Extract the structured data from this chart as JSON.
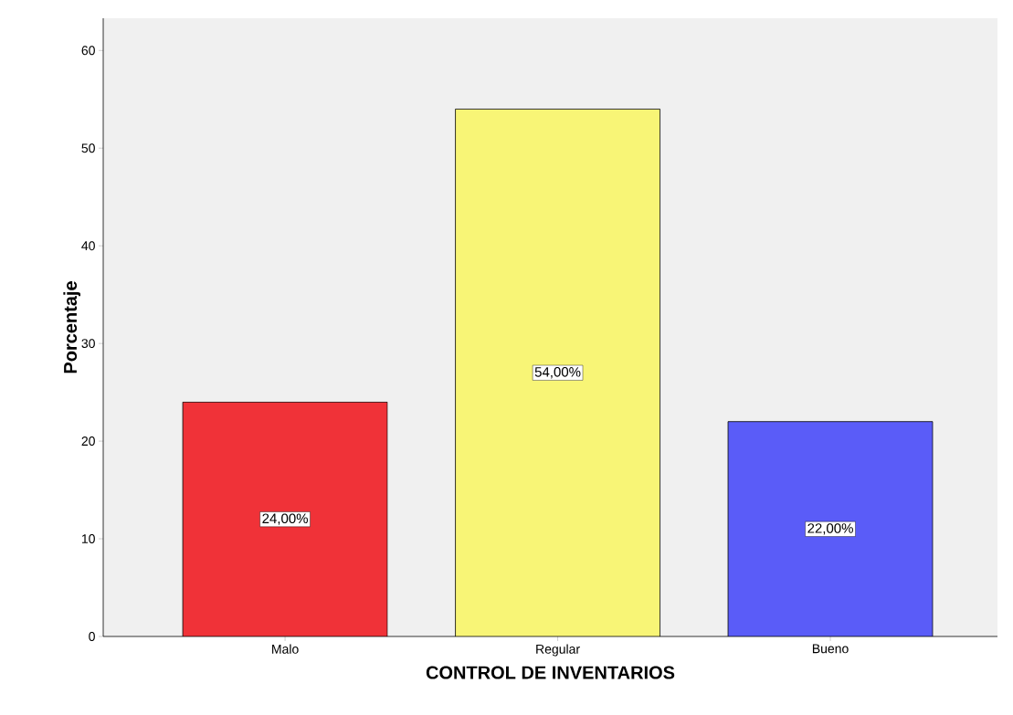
{
  "chart_data": {
    "type": "bar",
    "xlabel": "CONTROL DE INVENTARIOS",
    "ylabel": "Porcentaje",
    "categories": [
      "Malo",
      "Regular",
      "Bueno"
    ],
    "values": [
      24,
      54,
      22
    ],
    "value_labels": [
      "24,00%",
      "54,00%",
      "22,00%"
    ],
    "colors": [
      "#f03238",
      "#f8f576",
      "#5a5cf8"
    ],
    "ylim": [
      0,
      63.3
    ],
    "yticks": [
      0,
      10,
      20,
      30,
      40,
      50,
      60
    ]
  }
}
